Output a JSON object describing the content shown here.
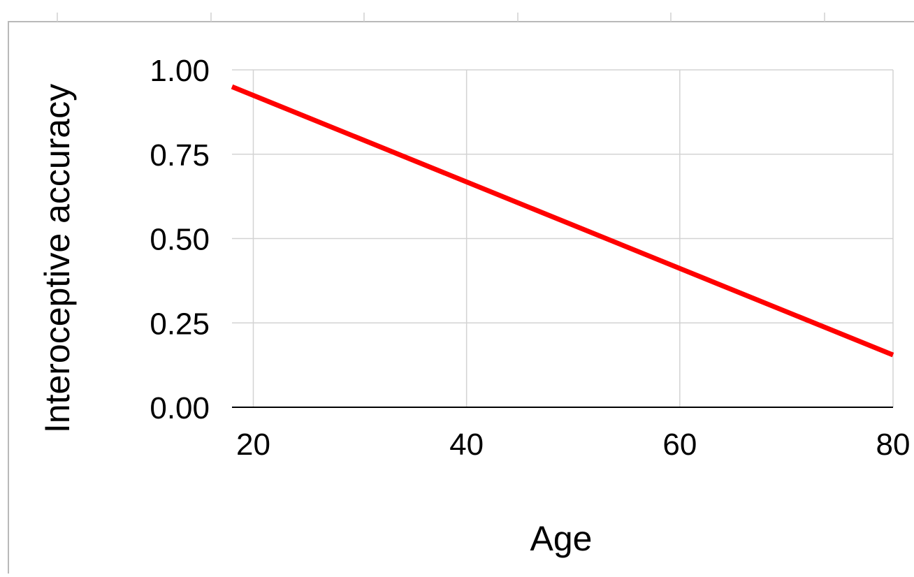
{
  "chart_data": {
    "type": "line",
    "title": "",
    "xlabel": "Age",
    "ylabel": "Interoceptive accuracy",
    "xlim": [
      18,
      80
    ],
    "ylim": [
      0,
      1
    ],
    "x_ticks": [
      20,
      40,
      60,
      80
    ],
    "x_tick_labels": [
      "20",
      "40",
      "60",
      "80"
    ],
    "y_ticks": [
      0,
      0.25,
      0.5,
      0.75,
      1
    ],
    "y_tick_labels": [
      "0.00",
      "0.25",
      "0.50",
      "0.75",
      "1.00"
    ],
    "grid": true,
    "legend": "none",
    "series": [
      {
        "color": "#ff0000",
        "x": [
          18,
          80
        ],
        "y": [
          0.95,
          0.155
        ]
      }
    ]
  }
}
